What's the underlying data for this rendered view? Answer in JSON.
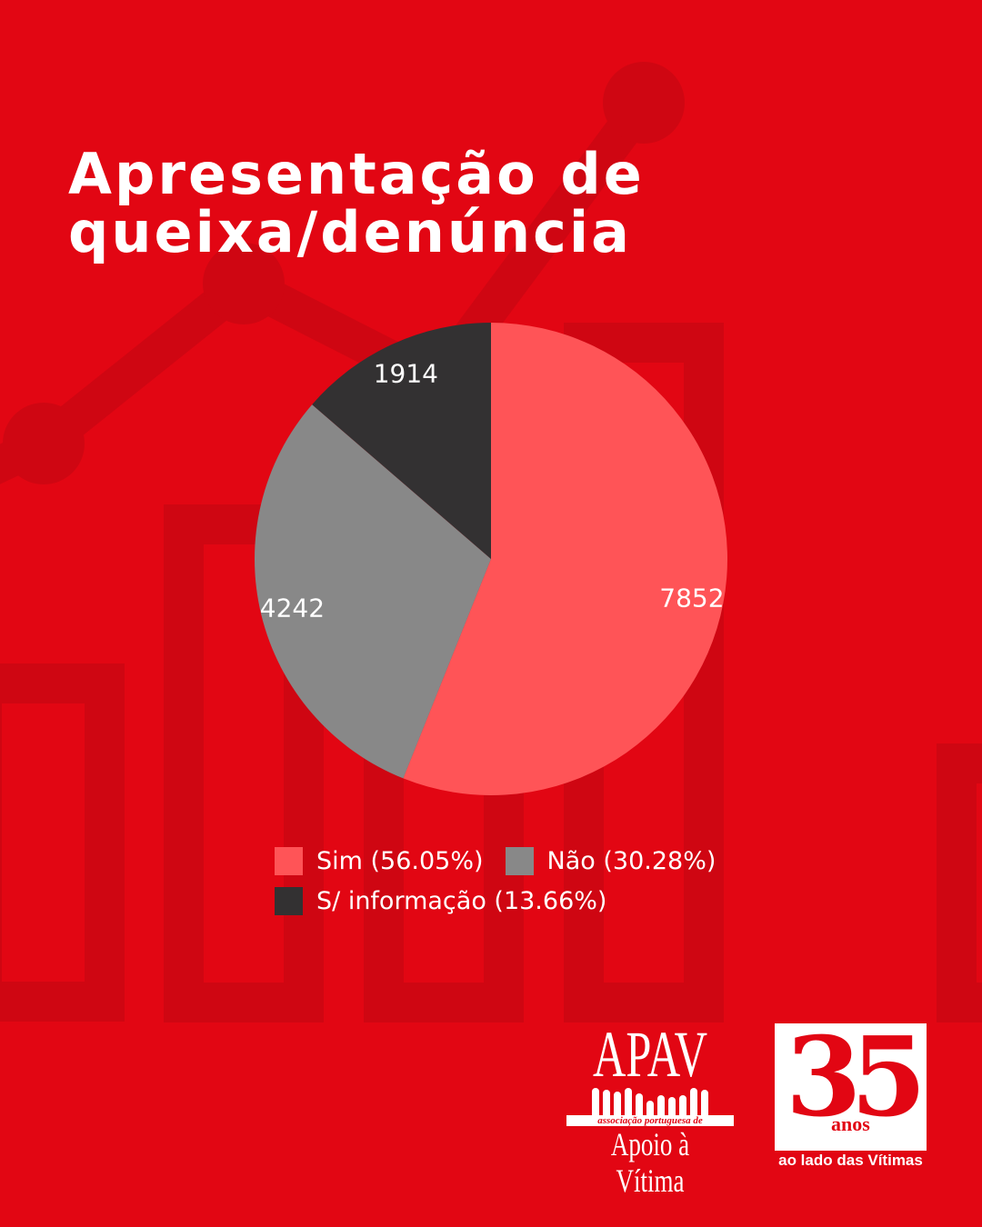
{
  "title_lines": [
    "Apresentação de",
    "queixa/denúncia"
  ],
  "chart_data": {
    "type": "pie",
    "title": "Apresentação de queixa/denúncia",
    "start_angle": "top, clockwise",
    "slices": [
      {
        "name": "Sim",
        "value": 7852,
        "percent": 56.05,
        "color": "#FF5457",
        "legend": "Sim (56.05%)"
      },
      {
        "name": "Não",
        "value": 4242,
        "percent": 30.28,
        "color": "#888888",
        "legend": "Não (30.28%)"
      },
      {
        "name": "S/ informação",
        "value": 1914,
        "percent": 13.66,
        "color": "#333132",
        "legend": "S/ informação (13.66%)"
      }
    ],
    "legend_placement": "bottom"
  },
  "colors": {
    "background": "#E20613",
    "decor": "#CF0612"
  },
  "logos": {
    "apav": {
      "name": "APAV",
      "registered": "®",
      "subtitle": "associação portuguesa de",
      "tagline": "Apoio à Vítima"
    },
    "anniversary": {
      "number": "35",
      "unit": "anos",
      "tagline": "ao lado das Vítimas"
    }
  }
}
